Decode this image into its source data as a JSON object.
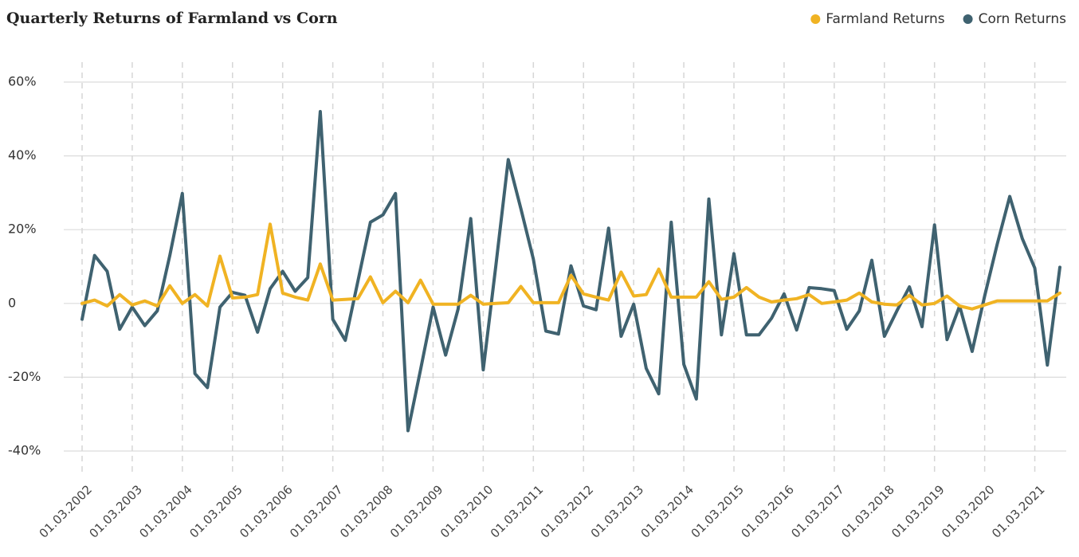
{
  "chart_data": {
    "type": "line",
    "title": "Quarterly Returns of Farmland vs Corn",
    "categories": [
      "01.03.2002",
      null,
      null,
      null,
      "01.03.2003",
      null,
      null,
      null,
      "01.03.2004",
      null,
      null,
      null,
      "01.03.2005",
      null,
      null,
      null,
      "01.03.2006",
      null,
      null,
      null,
      "01.03.2007",
      null,
      null,
      null,
      "01.03.2008",
      null,
      null,
      null,
      "01.03.2009",
      null,
      null,
      null,
      "01.03.2010",
      null,
      null,
      null,
      "01.03.2011",
      null,
      null,
      null,
      "01.03.2012",
      null,
      null,
      null,
      "01.03.2013",
      null,
      null,
      null,
      "01.03.2014",
      null,
      null,
      null,
      "01.03.2015",
      null,
      null,
      null,
      "01.03.2016",
      null,
      null,
      null,
      "01.03.2017",
      null,
      null,
      null,
      "01.03.2018",
      null,
      null,
      null,
      "01.03.2019",
      null,
      null,
      null,
      "01.03.2020",
      null,
      null,
      null,
      "01.03.2021",
      null,
      null
    ],
    "series": [
      {
        "name": "Farmland Returns",
        "color": "#f0b323",
        "values": [
          0,
          0.9,
          -0.7,
          2.4,
          -0.4,
          0.7,
          -0.7,
          4.8,
          0,
          2.4,
          -0.7,
          12.8,
          1.5,
          1.7,
          2.4,
          21.5,
          2.8,
          1.7,
          0.9,
          10.7,
          0.9,
          1.1,
          1.3,
          7.2,
          0.2,
          3.3,
          0.2,
          6.3,
          -0.2,
          -0.2,
          -0.2,
          2.2,
          -0.2,
          0,
          0.2,
          4.6,
          0.2,
          0.2,
          0.2,
          7.6,
          2.6,
          1.7,
          0.9,
          8.5,
          2,
          2.4,
          9.3,
          1.7,
          1.7,
          1.7,
          5.9,
          1.1,
          1.7,
          4.3,
          1.7,
          0.4,
          0.9,
          1.3,
          2.4,
          0,
          0.4,
          0.9,
          2.8,
          0.4,
          -0.2,
          -0.4,
          2.2,
          -0.4,
          0,
          2,
          -0.7,
          -1.5,
          -0.4,
          0.7,
          0.7,
          0.7,
          0.7,
          0.7,
          2.8
        ]
      },
      {
        "name": "Corn Returns",
        "color": "#3f6270",
        "values": [
          -4.3,
          13,
          8.7,
          -7,
          -1,
          -6,
          -2,
          13,
          29.8,
          -19,
          -22.8,
          -1,
          3,
          2.2,
          -7.8,
          4,
          8.7,
          3.3,
          7,
          52,
          -4.3,
          -10,
          6,
          22,
          24,
          29.8,
          -34.5,
          -18,
          -1,
          -14,
          -1.5,
          23,
          -18,
          10,
          39,
          25.7,
          12,
          -7.5,
          -8.3,
          10.2,
          -0.7,
          -1.7,
          20.4,
          -8.9,
          -0.2,
          -17.6,
          -24.5,
          22,
          -16.5,
          -25.9,
          28.3,
          -8.5,
          13.5,
          -8.5,
          -8.5,
          -4,
          2.6,
          -7.2,
          4.3,
          4,
          3.5,
          -7,
          -2,
          11.7,
          -8.9,
          -2,
          4.5,
          -6.3,
          21.3,
          -9.8,
          -0.7,
          -13,
          2,
          16,
          29,
          17.6,
          9.6,
          -16.7,
          9.8
        ]
      }
    ],
    "ylim": [
      -40,
      60
    ],
    "yticks": [
      {
        "value": -40,
        "label": "-40%"
      },
      {
        "value": -20,
        "label": "-20%"
      },
      0,
      {
        "value": 20,
        "label": "20%"
      },
      {
        "value": 40,
        "label": "40%"
      },
      {
        "value": 60,
        "label": "60%"
      }
    ],
    "grid": true,
    "legend": "top-right"
  }
}
